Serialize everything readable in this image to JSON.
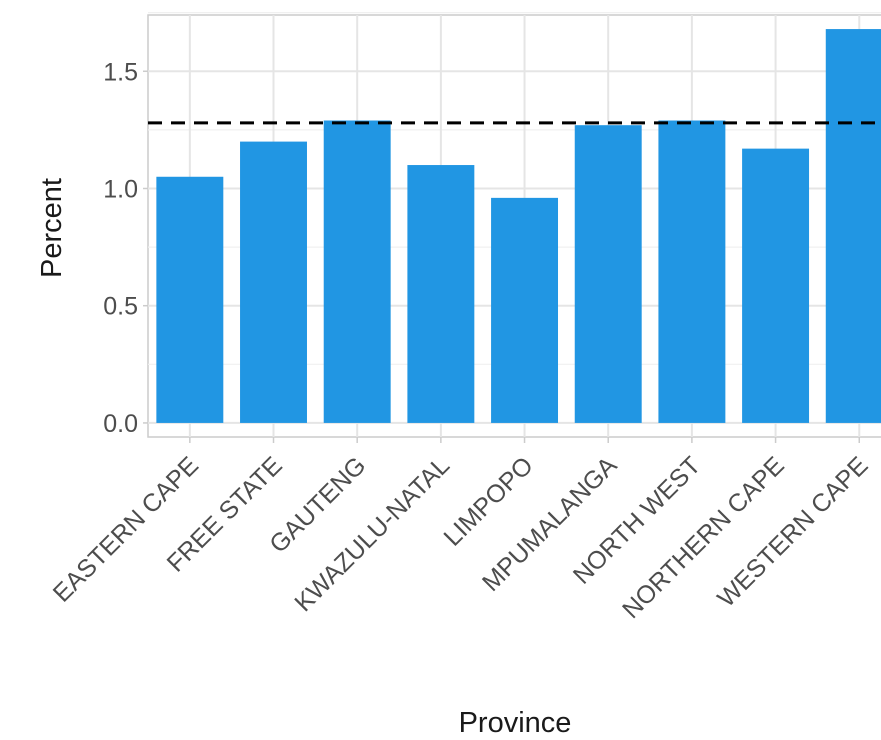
{
  "chart_data": {
    "type": "bar",
    "categories": [
      "EASTERN CAPE",
      "FREE STATE",
      "GAUTENG",
      "KWAZULU-NATAL",
      "LIMPOPO",
      "MPUMALANGA",
      "NORTH WEST",
      "NORTHERN CAPE",
      "WESTERN CAPE"
    ],
    "values": [
      1.05,
      1.2,
      1.29,
      1.1,
      0.96,
      1.27,
      1.29,
      1.17,
      1.68
    ],
    "reference_line": {
      "value": 1.28,
      "style": "dashed",
      "color": "#000000"
    },
    "title": "",
    "xlabel": "Province",
    "ylabel": "Percent",
    "ylim": [
      -0.06,
      1.74
    ],
    "yticks": [
      0.0,
      0.5,
      1.0,
      1.5
    ],
    "ytick_labels": [
      "0.0",
      "0.5",
      "1.0",
      "1.5"
    ],
    "bar_color": "#2196e3",
    "grid": true,
    "x_tick_rotation": 45
  }
}
